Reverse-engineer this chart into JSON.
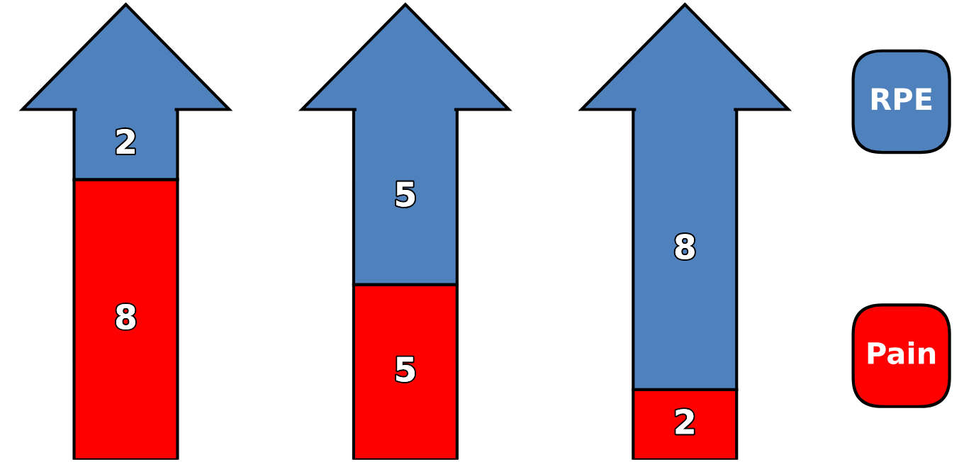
{
  "chart_data": {
    "type": "bar",
    "stacked": true,
    "categories": [
      null,
      null,
      null
    ],
    "series": [
      {
        "name": "Pain",
        "color": "#ff0000",
        "values": [
          8,
          5,
          2
        ]
      },
      {
        "name": "RPE",
        "color": "#4f81bd",
        "values": [
          2,
          5,
          8
        ]
      }
    ],
    "data_labels": true,
    "legend": "right"
  }
}
